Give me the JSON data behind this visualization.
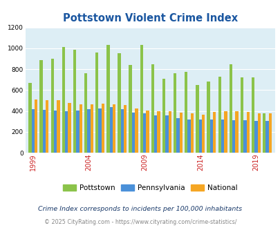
{
  "title": "Pottstown Violent Crime Index",
  "years": [
    1999,
    2000,
    2001,
    2002,
    2003,
    2004,
    2005,
    2006,
    2007,
    2008,
    2009,
    2010,
    2011,
    2012,
    2013,
    2014,
    2015,
    2016,
    2017,
    2018,
    2019,
    2020
  ],
  "pottstown": [
    670,
    885,
    900,
    1010,
    985,
    760,
    960,
    1035,
    950,
    840,
    1035,
    845,
    710,
    760,
    775,
    650,
    680,
    730,
    850,
    720,
    720,
    380
  ],
  "pennsylvania": [
    415,
    410,
    405,
    400,
    405,
    415,
    425,
    440,
    415,
    385,
    375,
    360,
    355,
    330,
    315,
    315,
    315,
    315,
    310,
    310,
    305,
    305
  ],
  "national": [
    510,
    500,
    500,
    480,
    465,
    465,
    470,
    465,
    455,
    425,
    405,
    395,
    395,
    385,
    380,
    365,
    390,
    395,
    395,
    390,
    380,
    380
  ],
  "pottstown_color": "#8bc34a",
  "pennsylvania_color": "#4a90d9",
  "national_color": "#f5a623",
  "background_color": "#ddeef5",
  "title_color": "#1a56a0",
  "ylim": [
    0,
    1200
  ],
  "yticks": [
    0,
    200,
    400,
    600,
    800,
    1000,
    1200
  ],
  "xtick_years": [
    1999,
    2004,
    2009,
    2014,
    2019
  ],
  "footnote": "Crime Index corresponds to incidents per 100,000 inhabitants",
  "copyright": "© 2025 CityRating.com - https://www.cityrating.com/crime-statistics/",
  "legend_labels": [
    "Pottstown",
    "Pennsylvania",
    "National"
  ],
  "footnote_color": "#1a3a6a",
  "copyright_color": "#888888",
  "xtick_color": "#cc2222"
}
